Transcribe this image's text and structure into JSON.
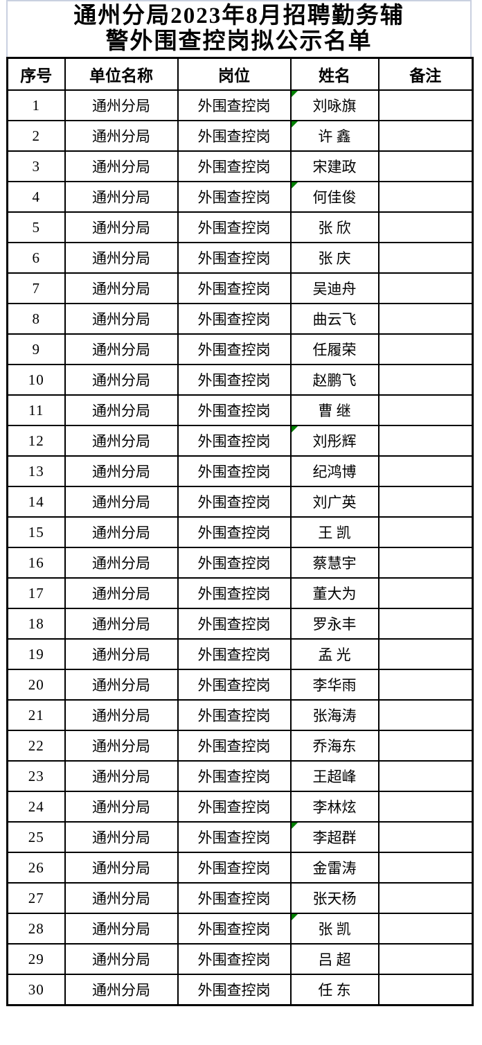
{
  "page": {
    "background": "#ffffff"
  },
  "colors": {
    "table_border": "#000000",
    "title_block_border": "#c9d0e0",
    "error_flag_green": "#008000",
    "text": "#000000"
  },
  "title": {
    "full_text": "通州分局2023年8月招聘勤务辅警外围查控岗拟公示名单",
    "lines": [
      "通州分局2023年8月招聘勤务辅",
      "警外围查控岗拟公示名单"
    ]
  },
  "table": {
    "headers": [
      "序号",
      "单位名称",
      "岗位",
      "姓名",
      "备注"
    ],
    "rows": [
      {
        "no": "1",
        "unit": "通州分局",
        "post": "外围查控岗",
        "name": "刘咏旗",
        "remark": "",
        "flag": true
      },
      {
        "no": "2",
        "unit": "通州分局",
        "post": "外围查控岗",
        "name": "许 鑫",
        "remark": "",
        "flag": true
      },
      {
        "no": "3",
        "unit": "通州分局",
        "post": "外围查控岗",
        "name": "宋建政",
        "remark": "",
        "flag": false
      },
      {
        "no": "4",
        "unit": "通州分局",
        "post": "外围查控岗",
        "name": "何佳俊",
        "remark": "",
        "flag": true
      },
      {
        "no": "5",
        "unit": "通州分局",
        "post": "外围查控岗",
        "name": "张 欣",
        "remark": "",
        "flag": false
      },
      {
        "no": "6",
        "unit": "通州分局",
        "post": "外围查控岗",
        "name": "张 庆",
        "remark": "",
        "flag": false
      },
      {
        "no": "7",
        "unit": "通州分局",
        "post": "外围查控岗",
        "name": "吴迪舟",
        "remark": "",
        "flag": false
      },
      {
        "no": "8",
        "unit": "通州分局",
        "post": "外围查控岗",
        "name": "曲云飞",
        "remark": "",
        "flag": false
      },
      {
        "no": "9",
        "unit": "通州分局",
        "post": "外围查控岗",
        "name": "任履荣",
        "remark": "",
        "flag": false
      },
      {
        "no": "10",
        "unit": "通州分局",
        "post": "外围查控岗",
        "name": "赵鹏飞",
        "remark": "",
        "flag": false
      },
      {
        "no": "11",
        "unit": "通州分局",
        "post": "外围查控岗",
        "name": "曹 继",
        "remark": "",
        "flag": false
      },
      {
        "no": "12",
        "unit": "通州分局",
        "post": "外围查控岗",
        "name": "刘彤辉",
        "remark": "",
        "flag": true
      },
      {
        "no": "13",
        "unit": "通州分局",
        "post": "外围查控岗",
        "name": "纪鸿博",
        "remark": "",
        "flag": false
      },
      {
        "no": "14",
        "unit": "通州分局",
        "post": "外围查控岗",
        "name": "刘广英",
        "remark": "",
        "flag": false
      },
      {
        "no": "15",
        "unit": "通州分局",
        "post": "外围查控岗",
        "name": "王 凯",
        "remark": "",
        "flag": false
      },
      {
        "no": "16",
        "unit": "通州分局",
        "post": "外围查控岗",
        "name": "蔡慧宇",
        "remark": "",
        "flag": false
      },
      {
        "no": "17",
        "unit": "通州分局",
        "post": "外围查控岗",
        "name": "董大为",
        "remark": "",
        "flag": false
      },
      {
        "no": "18",
        "unit": "通州分局",
        "post": "外围查控岗",
        "name": "罗永丰",
        "remark": "",
        "flag": false
      },
      {
        "no": "19",
        "unit": "通州分局",
        "post": "外围查控岗",
        "name": "孟 光",
        "remark": "",
        "flag": false
      },
      {
        "no": "20",
        "unit": "通州分局",
        "post": "外围查控岗",
        "name": "李华雨",
        "remark": "",
        "flag": false
      },
      {
        "no": "21",
        "unit": "通州分局",
        "post": "外围查控岗",
        "name": "张海涛",
        "remark": "",
        "flag": false
      },
      {
        "no": "22",
        "unit": "通州分局",
        "post": "外围查控岗",
        "name": "乔海东",
        "remark": "",
        "flag": false
      },
      {
        "no": "23",
        "unit": "通州分局",
        "post": "外围查控岗",
        "name": "王超峰",
        "remark": "",
        "flag": false
      },
      {
        "no": "24",
        "unit": "通州分局",
        "post": "外围查控岗",
        "name": "李林炫",
        "remark": "",
        "flag": false
      },
      {
        "no": "25",
        "unit": "通州分局",
        "post": "外围查控岗",
        "name": "李超群",
        "remark": "",
        "flag": true
      },
      {
        "no": "26",
        "unit": "通州分局",
        "post": "外围查控岗",
        "name": "金雷涛",
        "remark": "",
        "flag": false
      },
      {
        "no": "27",
        "unit": "通州分局",
        "post": "外围查控岗",
        "name": "张天杨",
        "remark": "",
        "flag": false
      },
      {
        "no": "28",
        "unit": "通州分局",
        "post": "外围查控岗",
        "name": "张 凯",
        "remark": "",
        "flag": true
      },
      {
        "no": "29",
        "unit": "通州分局",
        "post": "外围查控岗",
        "name": "吕 超",
        "remark": "",
        "flag": false
      },
      {
        "no": "30",
        "unit": "通州分局",
        "post": "外围查控岗",
        "name": "任 东",
        "remark": "",
        "flag": false
      }
    ]
  }
}
